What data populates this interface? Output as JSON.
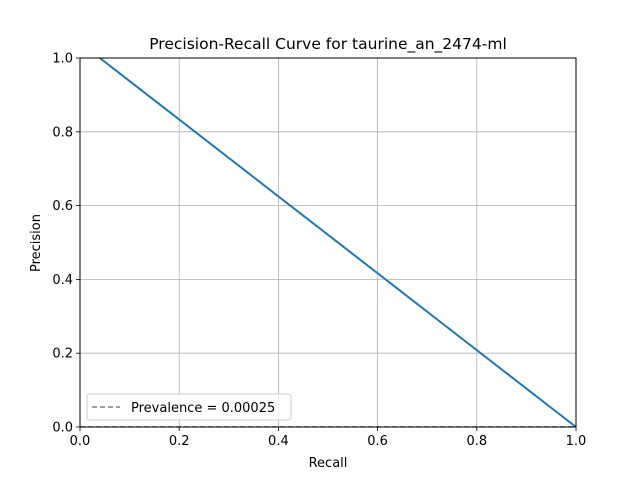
{
  "chart_data": {
    "type": "line",
    "title": "Precision-Recall Curve for taurine_an_2474-ml",
    "xlabel": "Recall",
    "ylabel": "Precision",
    "xlim": [
      0.0,
      1.0
    ],
    "ylim": [
      0.0,
      1.0
    ],
    "grid": true,
    "legend_position": "lower-left",
    "xticks": [
      "0.0",
      "0.2",
      "0.4",
      "0.6",
      "0.8",
      "1.0"
    ],
    "yticks": [
      "0.0",
      "0.2",
      "0.4",
      "0.6",
      "0.8",
      "1.0"
    ],
    "series": [
      {
        "style": "solid",
        "color": "#1f77b4",
        "x": [
          0.04,
          1.0
        ],
        "y": [
          1.0,
          0.0
        ]
      },
      {
        "name": "Prevalence = 0.00025",
        "style": "dashed",
        "color": "#7f7f7f",
        "x": [
          0.0,
          1.0
        ],
        "y": [
          0.00025,
          0.00025
        ]
      }
    ]
  }
}
